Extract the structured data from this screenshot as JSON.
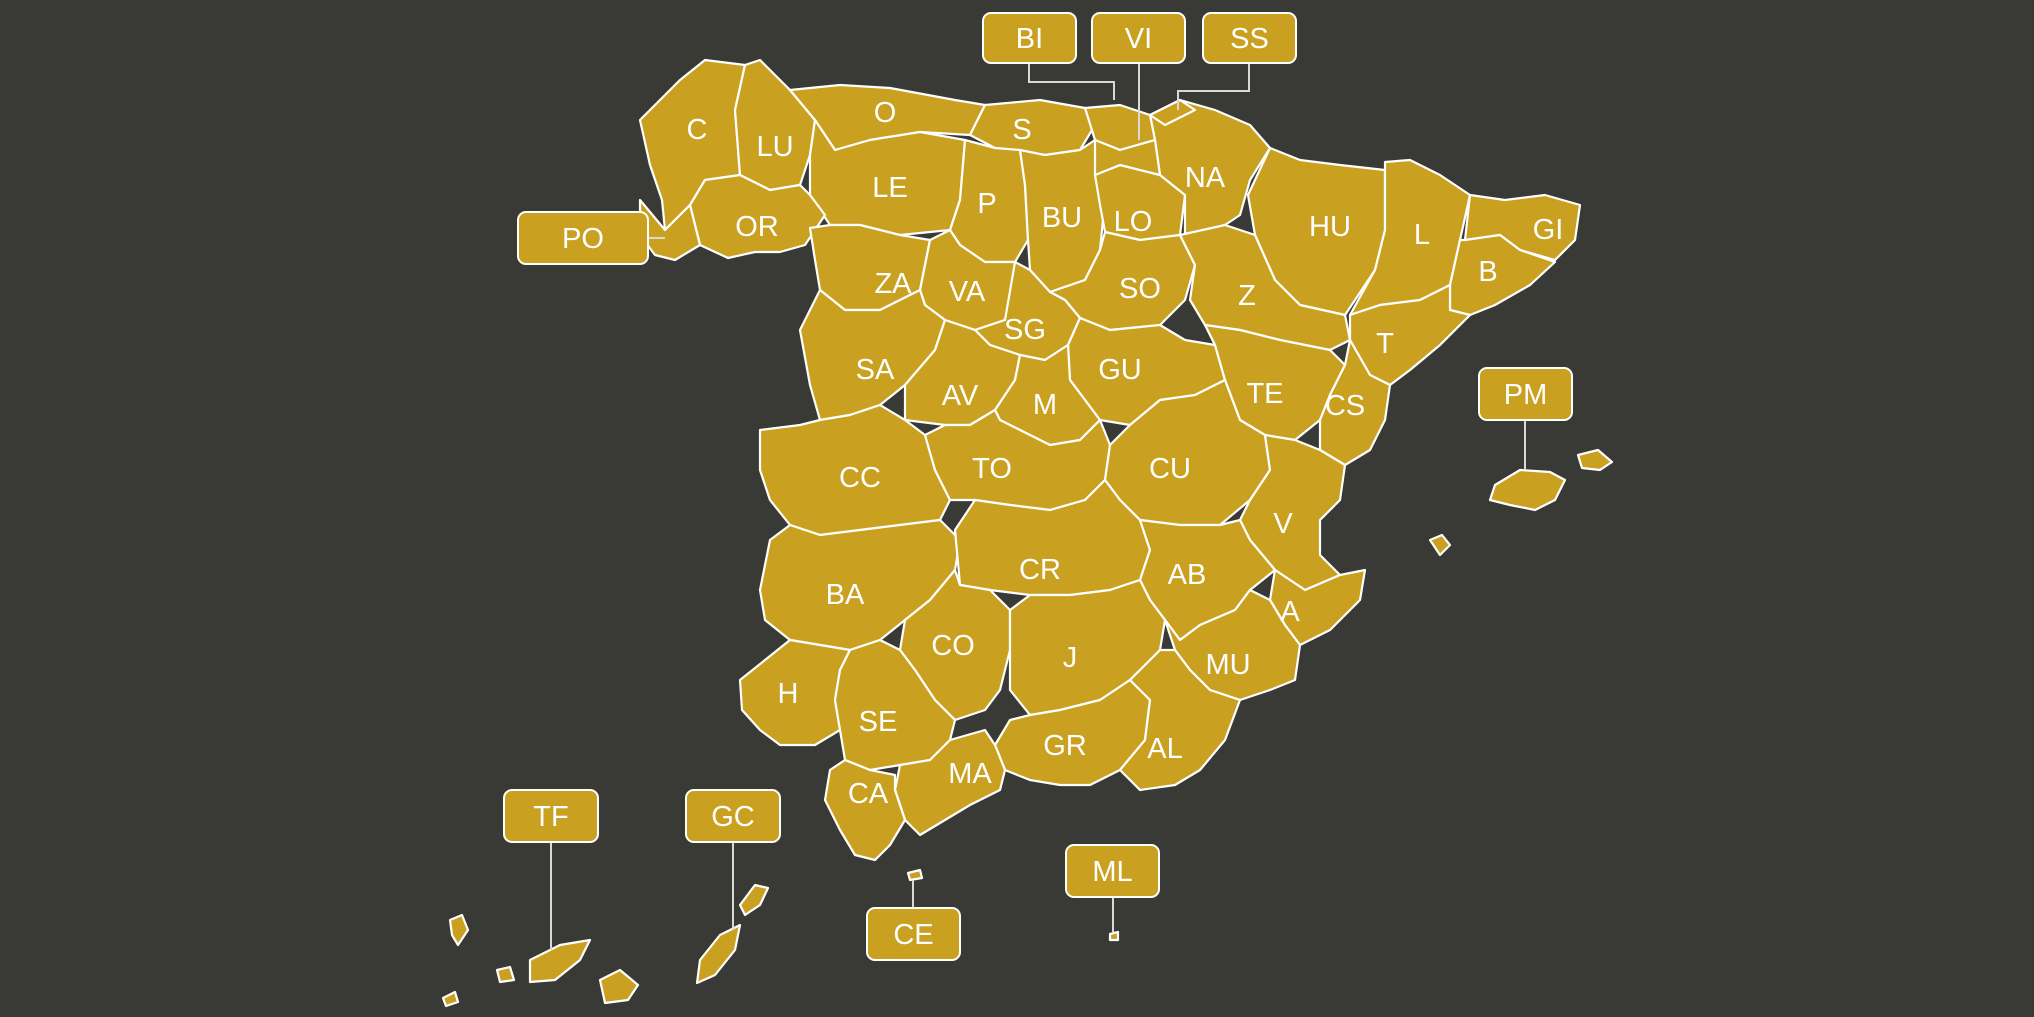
{
  "colors": {
    "background": "#393936",
    "region_fill": "#c9a020",
    "border": "#ffffff",
    "leader": "#d9d9d9"
  },
  "province_labels": [
    "C",
    "LU",
    "O",
    "S",
    "LE",
    "OR",
    "P",
    "BU",
    "LO",
    "NA",
    "HU",
    "L",
    "GI",
    "B",
    "ZA",
    "VA",
    "SO",
    "Z",
    "SG",
    "SA",
    "GU",
    "TE",
    "T",
    "CS",
    "AV",
    "M",
    "CC",
    "TO",
    "CU",
    "V",
    "BA",
    "CR",
    "AB",
    "A",
    "CO",
    "J",
    "MU",
    "H",
    "SE",
    "GR",
    "AL",
    "MA",
    "CA"
  ],
  "callouts": [
    "BI",
    "VI",
    "SS",
    "PO",
    "PM",
    "TF",
    "GC",
    "CE",
    "ML"
  ]
}
